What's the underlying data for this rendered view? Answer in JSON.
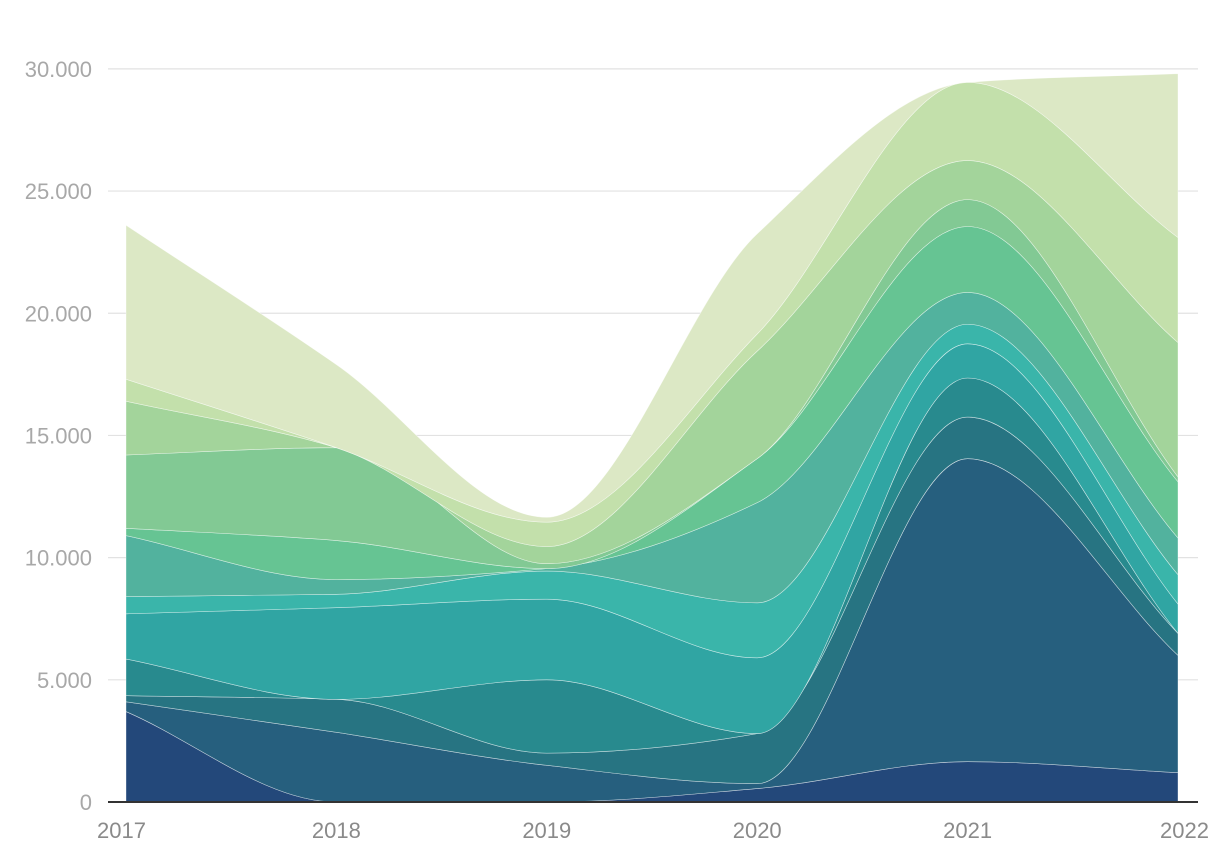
{
  "chart_data": {
    "type": "area",
    "stacked": true,
    "curve": "smooth",
    "x": [
      "2017",
      "2018",
      "2019",
      "2020",
      "2021",
      "2022"
    ],
    "y_ticks": [
      "0",
      "5.000",
      "10.000",
      "15.000",
      "20.000",
      "25.000",
      "30.000"
    ],
    "y_tick_values": [
      0,
      5000,
      10000,
      15000,
      20000,
      25000,
      30000
    ],
    "ylim": [
      0,
      32000
    ],
    "grid": true,
    "legend": "none",
    "title": "",
    "xlabel": "",
    "ylabel": "",
    "series": [
      {
        "color": "#23487a",
        "values": [
          3700,
          0,
          0,
          550,
          1650,
          1200
        ]
      },
      {
        "color": "#265f7e",
        "values": [
          400,
          2850,
          1500,
          200,
          12400,
          4800
        ]
      },
      {
        "color": "#277482",
        "values": [
          250,
          1350,
          500,
          2050,
          1700,
          900
        ]
      },
      {
        "color": "#288a8e",
        "values": [
          1500,
          0,
          3000,
          0,
          1600,
          0
        ]
      },
      {
        "color": "#30a5a3",
        "values": [
          1850,
          3750,
          3300,
          3100,
          1400,
          1200
        ]
      },
      {
        "color": "#3ab5aa",
        "values": [
          700,
          550,
          1150,
          2250,
          800,
          1200
        ]
      },
      {
        "color": "#52b29e",
        "values": [
          2500,
          600,
          100,
          4100,
          1300,
          1500
        ]
      },
      {
        "color": "#66c493",
        "values": [
          300,
          1600,
          0,
          1800,
          2700,
          2300
        ]
      },
      {
        "color": "#82c994",
        "values": [
          3000,
          3800,
          200,
          0,
          1100,
          200
        ]
      },
      {
        "color": "#a3d49b",
        "values": [
          2200,
          0,
          700,
          4400,
          1600,
          5500
        ]
      },
      {
        "color": "#c3e0ab",
        "values": [
          900,
          0,
          1000,
          700,
          3200,
          4300
        ]
      },
      {
        "color": "#dce8c5",
        "values": [
          6300,
          3400,
          200,
          4100,
          0,
          6700
        ]
      }
    ]
  }
}
